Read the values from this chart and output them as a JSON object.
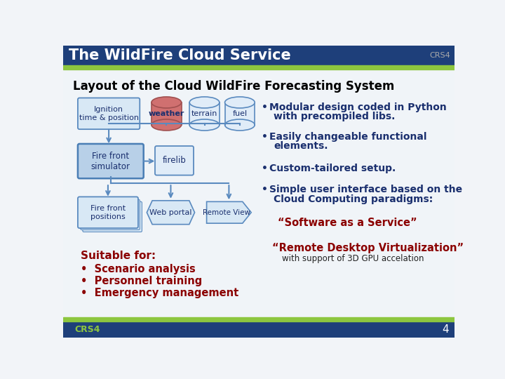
{
  "title": "The WildFire Cloud Service",
  "crs4_label": "CRS4",
  "subtitle": "Layout of the Cloud WildFire Forecasting System",
  "header_bg": "#1e3f7a",
  "header_green": "#8dc63f",
  "footer_bg": "#1e3f7a",
  "title_color": "#ffffff",
  "subtitle_color": "#000000",
  "bullet_color": "#8b0000",
  "dark_blue": "#1a2f6e",
  "bullet_header": "Suitable for:",
  "bullets_left": [
    "Scenario analysis",
    "Personnel training",
    "Emergency management"
  ],
  "right_bullet_color": "#1a2f6e",
  "quote_color": "#8b0000",
  "quote1": "“Software as a Service”",
  "quote2": "“Remote Desktop Virtualization”",
  "quote2_sub": "with support of 3D GPU accelation",
  "page_number": "4",
  "box_fill": "#d8e8f5",
  "box_edge": "#5a8abf",
  "sim_fill": "#b8d0e8",
  "sim_edge": "#4a7eb5",
  "firelib_fill": "#e0ecf8",
  "firelib_edge": "#5a8abf",
  "weather_fill_top": "#e8a0a0",
  "weather_fill_body": "#d07070",
  "weather_edge": "#a05050",
  "cylinder_fill": "#e0ecf8",
  "cylinder_edge": "#5a8abf",
  "arrow_color": "#5a8abf",
  "bg_color": "#f0f4f8"
}
